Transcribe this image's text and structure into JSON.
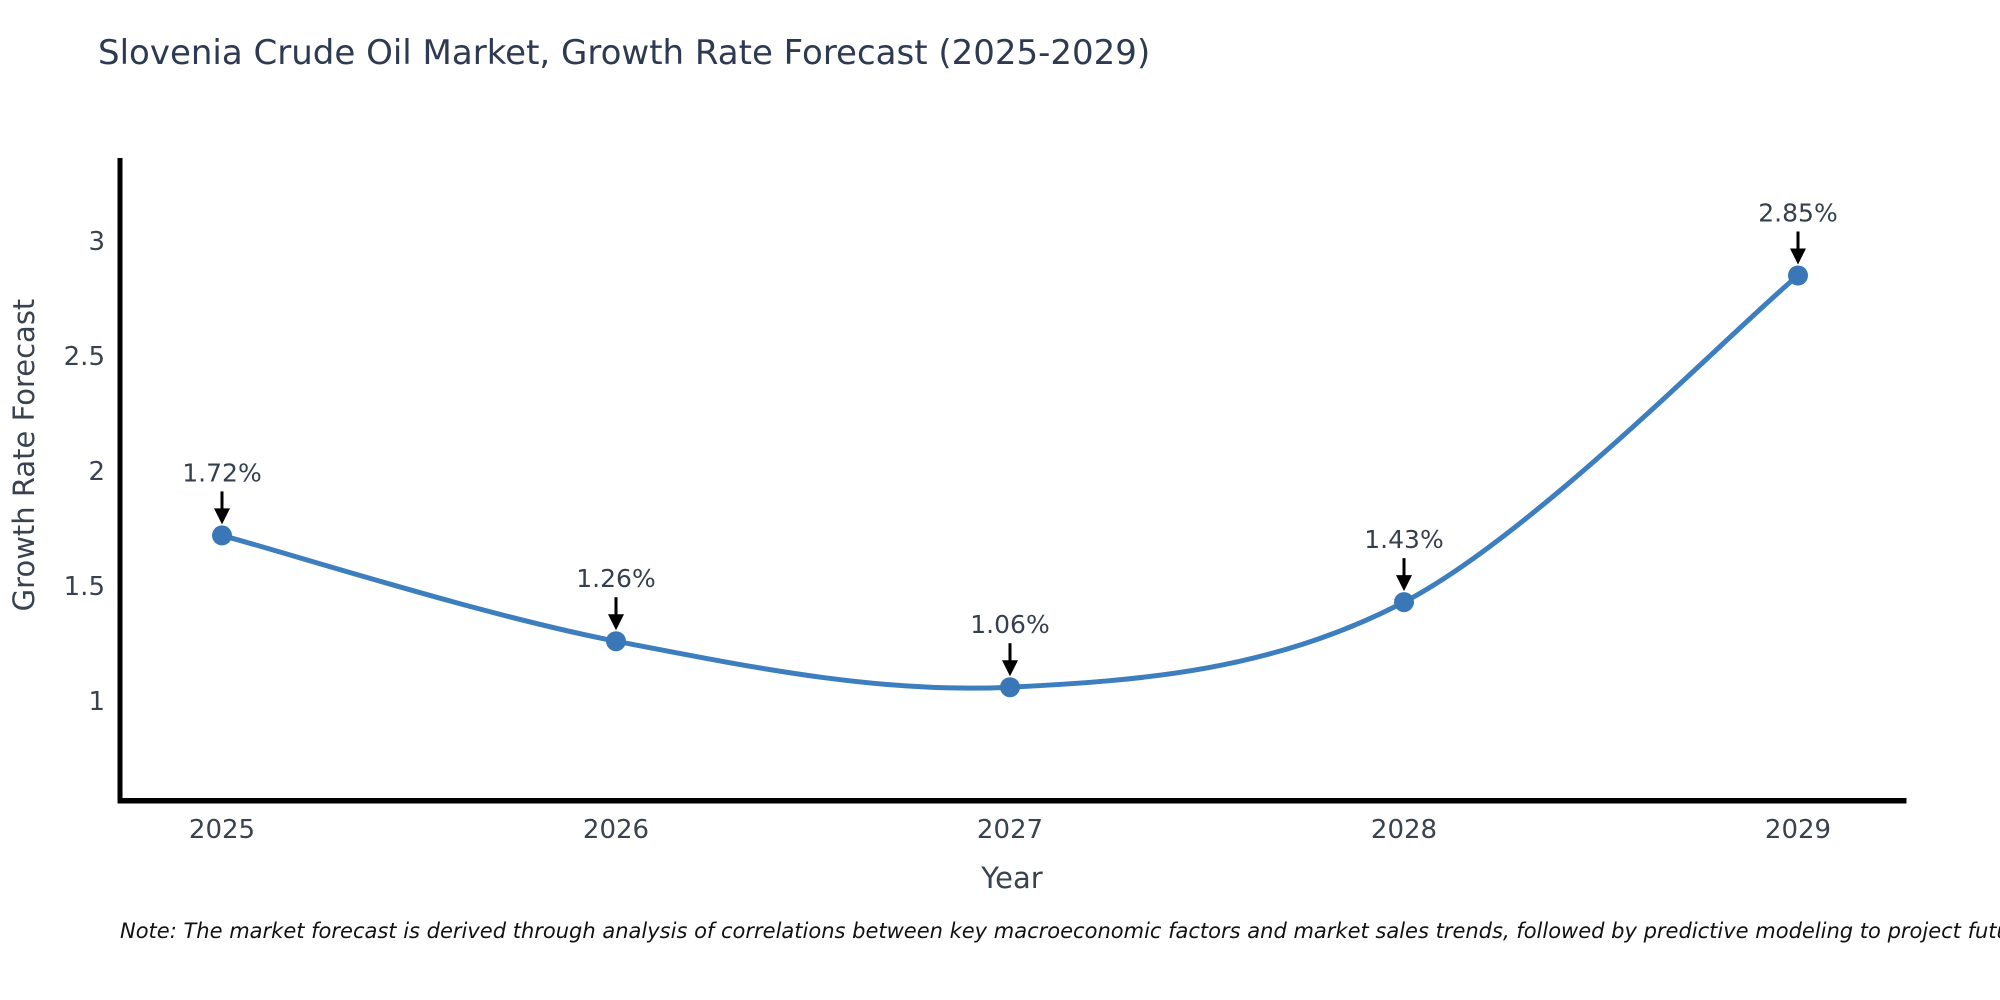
{
  "title": "Slovenia Crude Oil Market, Growth Rate Forecast (2025-2029)",
  "note": "Note: The market forecast is derived through analysis of correlations between key macroeconomic factors and market sales trends, followed by predictive modeling to project future sales",
  "chart_data": {
    "type": "line",
    "title": "Slovenia Crude Oil Market, Growth Rate Forecast (2025-2029)",
    "xlabel": "Year",
    "ylabel": "Growth Rate Forecast",
    "x": [
      2025,
      2026,
      2027,
      2028,
      2029
    ],
    "xtick_labels": [
      "2025",
      "2026",
      "2027",
      "2028",
      "2029"
    ],
    "values": [
      1.72,
      1.26,
      1.06,
      1.43,
      2.85
    ],
    "point_labels": [
      "1.72%",
      "1.26%",
      "1.06%",
      "1.43%",
      "2.85%"
    ],
    "yticks": [
      1,
      1.5,
      2,
      2.5,
      3
    ],
    "ytick_labels": [
      "1",
      "1.5",
      "2",
      "2.5",
      "3"
    ],
    "ylim": [
      0.57,
      3.36
    ],
    "grid": false,
    "legend": null,
    "smooth": true,
    "line_color": "#3d7ebf",
    "marker_color": "#3a77b6",
    "arrow_color": "#000000",
    "axis_color": "#000000",
    "title_color": "#2e3a52",
    "text_color": "#39424f"
  }
}
